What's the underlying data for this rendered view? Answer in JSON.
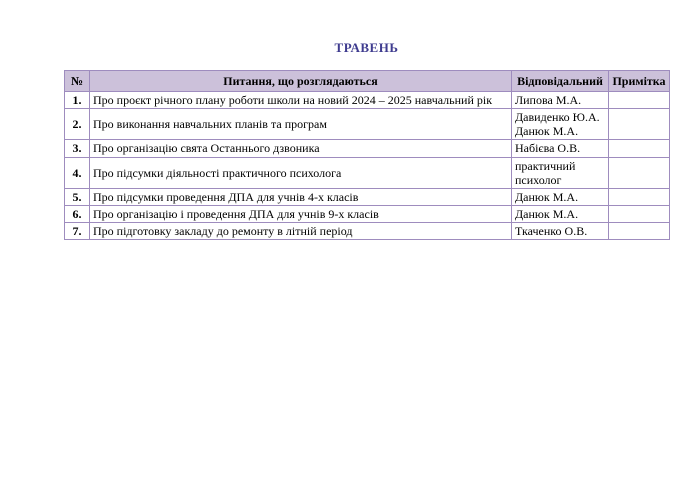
{
  "page": {
    "title": "ТРАВЕНЬ"
  },
  "colors": {
    "title_text": "#3f3c8f",
    "header_bg": "#ccc1da",
    "table_border": "#9e8cbe",
    "body_text": "#000000",
    "page_bg": "#ffffff"
  },
  "table": {
    "headers": {
      "num": "№",
      "question": "Питання, що розглядаються",
      "responsible": "Відповідальний",
      "note": "Примітка"
    },
    "rows": [
      {
        "num": "1.",
        "question": "Про проєкт річного  плану роботи   школи  на новий  2024 – 2025 навчальний рік",
        "responsible": "Липова М.А.",
        "note": ""
      },
      {
        "num": "2.",
        "question": "Про виконання навчальних планів та програм",
        "responsible": "Давиденко Ю.А.\nДанюк М.А.",
        "note": ""
      },
      {
        "num": "3.",
        "question": "Про організацію свята Останнього дзвоника",
        "responsible": "Набієва О.В.",
        "note": ""
      },
      {
        "num": "4.",
        "question": "Про підсумки діяльності практичного психолога",
        "responsible": "практичний\nпсихолог",
        "note": ""
      },
      {
        "num": "5.",
        "question": "Про підсумки проведення ДПА для учнів 4-х класів",
        "responsible": "Данюк М.А.",
        "note": ""
      },
      {
        "num": "6.",
        "question": "Про організацію і проведення ДПА для учнів 9-х класів",
        "responsible": "Данюк М.А.",
        "note": ""
      },
      {
        "num": "7.",
        "question": "Про підготовку  закладу до ремонту в літній період",
        "responsible": "Ткаченко О.В.",
        "note": ""
      }
    ]
  }
}
